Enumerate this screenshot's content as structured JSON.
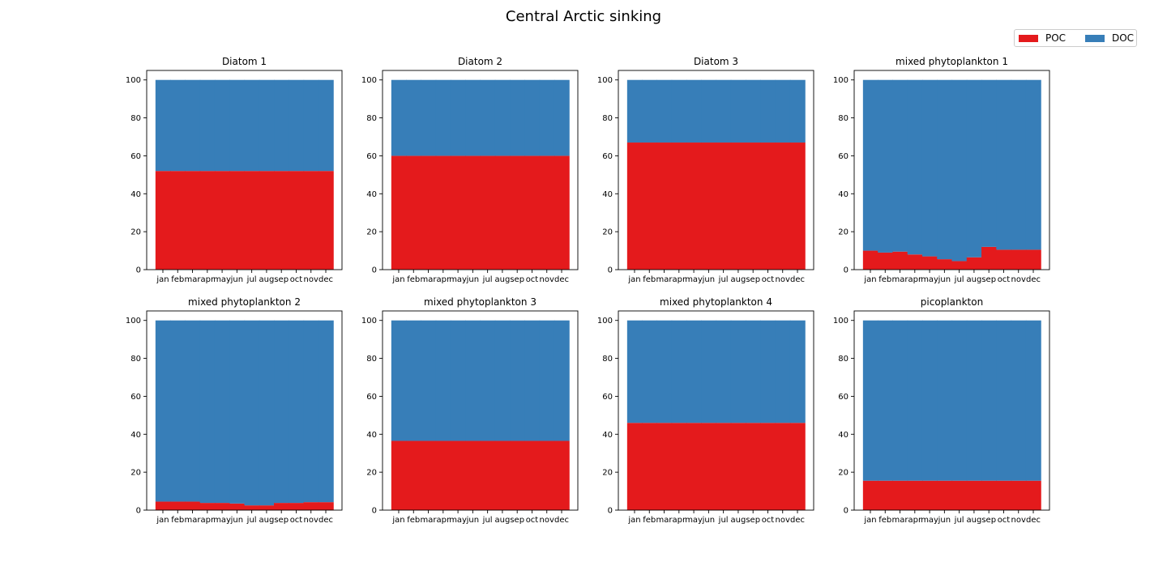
{
  "figure": {
    "title": "Central Arctic sinking"
  },
  "legend": {
    "placement": "top-right",
    "items": [
      {
        "label": "POC",
        "color": "#e41a1c"
      },
      {
        "label": "DOC",
        "color": "#377eb8"
      }
    ]
  },
  "chart_data": [
    {
      "type": "bar",
      "stacked": true,
      "title": "Diatom 1",
      "categories": [
        "jan",
        "feb",
        "mar",
        "apr",
        "may",
        "jun",
        "jul",
        "aug",
        "sep",
        "oct",
        "nov",
        "dec"
      ],
      "series": [
        {
          "name": "POC",
          "color": "#e41a1c",
          "values": [
            52,
            52,
            52,
            52,
            52,
            52,
            52,
            52,
            52,
            52,
            52,
            52
          ]
        },
        {
          "name": "DOC",
          "color": "#377eb8",
          "values": [
            48,
            48,
            48,
            48,
            48,
            48,
            48,
            48,
            48,
            48,
            48,
            48
          ]
        }
      ],
      "ylim": [
        0,
        105
      ],
      "yticks": [
        0,
        20,
        40,
        60,
        80,
        100
      ]
    },
    {
      "type": "bar",
      "stacked": true,
      "title": "Diatom 2",
      "categories": [
        "jan",
        "feb",
        "mar",
        "apr",
        "may",
        "jun",
        "jul",
        "aug",
        "sep",
        "oct",
        "nov",
        "dec"
      ],
      "series": [
        {
          "name": "POC",
          "color": "#e41a1c",
          "values": [
            60,
            60,
            60,
            60,
            60,
            60,
            60,
            60,
            60,
            60,
            60,
            60
          ]
        },
        {
          "name": "DOC",
          "color": "#377eb8",
          "values": [
            40,
            40,
            40,
            40,
            40,
            40,
            40,
            40,
            40,
            40,
            40,
            40
          ]
        }
      ],
      "ylim": [
        0,
        105
      ],
      "yticks": [
        0,
        20,
        40,
        60,
        80,
        100
      ]
    },
    {
      "type": "bar",
      "stacked": true,
      "title": "Diatom 3",
      "categories": [
        "jan",
        "feb",
        "mar",
        "apr",
        "may",
        "jun",
        "jul",
        "aug",
        "sep",
        "oct",
        "nov",
        "dec"
      ],
      "series": [
        {
          "name": "POC",
          "color": "#e41a1c",
          "values": [
            67,
            67,
            67,
            67,
            67,
            67,
            67,
            67,
            67,
            67,
            67,
            67
          ]
        },
        {
          "name": "DOC",
          "color": "#377eb8",
          "values": [
            33,
            33,
            33,
            33,
            33,
            33,
            33,
            33,
            33,
            33,
            33,
            33
          ]
        }
      ],
      "ylim": [
        0,
        105
      ],
      "yticks": [
        0,
        20,
        40,
        60,
        80,
        100
      ]
    },
    {
      "type": "bar",
      "stacked": true,
      "title": "mixed phytoplankton 1",
      "categories": [
        "jan",
        "feb",
        "mar",
        "apr",
        "may",
        "jun",
        "jul",
        "aug",
        "sep",
        "oct",
        "nov",
        "dec"
      ],
      "series": [
        {
          "name": "POC",
          "color": "#e41a1c",
          "values": [
            10,
            9,
            9.5,
            8,
            7,
            5.5,
            4.5,
            6.5,
            12,
            10.5,
            10.5,
            10.5
          ]
        },
        {
          "name": "DOC",
          "color": "#377eb8",
          "values": [
            90,
            91,
            90.5,
            92,
            93,
            94.5,
            95.5,
            93.5,
            88,
            89.5,
            89.5,
            89.5
          ]
        }
      ],
      "ylim": [
        0,
        105
      ],
      "yticks": [
        0,
        20,
        40,
        60,
        80,
        100
      ]
    },
    {
      "type": "bar",
      "stacked": true,
      "title": "mixed phytoplankton 2",
      "categories": [
        "jan",
        "feb",
        "mar",
        "apr",
        "may",
        "jun",
        "jul",
        "aug",
        "sep",
        "oct",
        "nov",
        "dec"
      ],
      "series": [
        {
          "name": "POC",
          "color": "#e41a1c",
          "values": [
            4.5,
            4.5,
            4.5,
            3.8,
            3.8,
            3.5,
            2.5,
            2.5,
            3.8,
            3.8,
            4.2,
            4.2
          ]
        },
        {
          "name": "DOC",
          "color": "#377eb8",
          "values": [
            95.5,
            95.5,
            95.5,
            96.2,
            96.2,
            96.5,
            97.5,
            97.5,
            96.2,
            96.2,
            95.8,
            95.8
          ]
        }
      ],
      "ylim": [
        0,
        105
      ],
      "yticks": [
        0,
        20,
        40,
        60,
        80,
        100
      ]
    },
    {
      "type": "bar",
      "stacked": true,
      "title": "mixed phytoplankton 3",
      "categories": [
        "jan",
        "feb",
        "mar",
        "apr",
        "may",
        "jun",
        "jul",
        "aug",
        "sep",
        "oct",
        "nov",
        "dec"
      ],
      "series": [
        {
          "name": "POC",
          "color": "#e41a1c",
          "values": [
            36.5,
            36.5,
            36.5,
            36.5,
            36.5,
            36.5,
            36.5,
            36.5,
            36.5,
            36.5,
            36.5,
            36.5
          ]
        },
        {
          "name": "DOC",
          "color": "#377eb8",
          "values": [
            63.5,
            63.5,
            63.5,
            63.5,
            63.5,
            63.5,
            63.5,
            63.5,
            63.5,
            63.5,
            63.5,
            63.5
          ]
        }
      ],
      "ylim": [
        0,
        105
      ],
      "yticks": [
        0,
        20,
        40,
        60,
        80,
        100
      ]
    },
    {
      "type": "bar",
      "stacked": true,
      "title": "mixed phytoplankton 4",
      "categories": [
        "jan",
        "feb",
        "mar",
        "apr",
        "may",
        "jun",
        "jul",
        "aug",
        "sep",
        "oct",
        "nov",
        "dec"
      ],
      "series": [
        {
          "name": "POC",
          "color": "#e41a1c",
          "values": [
            46,
            46,
            46,
            46,
            46,
            46,
            46,
            46,
            46,
            46,
            46,
            46
          ]
        },
        {
          "name": "DOC",
          "color": "#377eb8",
          "values": [
            54,
            54,
            54,
            54,
            54,
            54,
            54,
            54,
            54,
            54,
            54,
            54
          ]
        }
      ],
      "ylim": [
        0,
        105
      ],
      "yticks": [
        0,
        20,
        40,
        60,
        80,
        100
      ]
    },
    {
      "type": "bar",
      "stacked": true,
      "title": "picoplankton",
      "categories": [
        "jan",
        "feb",
        "mar",
        "apr",
        "may",
        "jun",
        "jul",
        "aug",
        "sep",
        "oct",
        "nov",
        "dec"
      ],
      "series": [
        {
          "name": "POC",
          "color": "#e41a1c",
          "values": [
            15.5,
            15.5,
            15.5,
            15.5,
            15.5,
            15.5,
            15.5,
            15.5,
            15.5,
            15.5,
            15.5,
            15.5
          ]
        },
        {
          "name": "DOC",
          "color": "#377eb8",
          "values": [
            84.5,
            84.5,
            84.5,
            84.5,
            84.5,
            84.5,
            84.5,
            84.5,
            84.5,
            84.5,
            84.5,
            84.5
          ]
        }
      ],
      "ylim": [
        0,
        105
      ],
      "yticks": [
        0,
        20,
        40,
        60,
        80,
        100
      ]
    }
  ]
}
